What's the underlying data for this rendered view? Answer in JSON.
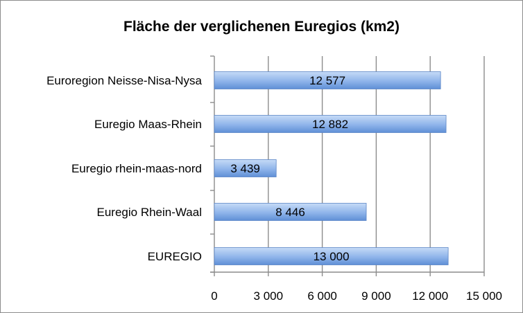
{
  "chart_data": {
    "type": "bar",
    "orientation": "horizontal",
    "title": "Fläche der verglichenen Euregios (km2)",
    "categories": [
      "Euroregion Neisse-Nisa-Nysa",
      "Euregio Maas-Rhein",
      "Euregio rhein-maas-nord",
      "Euregio Rhein-Waal",
      "EUREGIO"
    ],
    "values": [
      12577,
      12882,
      3439,
      8446,
      13000
    ],
    "data_labels": [
      "12 577",
      "12 882",
      "3 439",
      "8 446",
      "13 000"
    ],
    "xlim": [
      0,
      15000
    ],
    "x_ticks": [
      0,
      3000,
      6000,
      9000,
      12000,
      15000
    ],
    "x_tick_labels": [
      "0",
      "3 000",
      "6 000",
      "9 000",
      "12 000",
      "15 000"
    ],
    "xlabel": "",
    "ylabel": "",
    "grid": "vertical",
    "legend": "none",
    "colors": {
      "bar_top": "#c6dbf7",
      "bar_mid": "#8fb4ea",
      "bar_bottom": "#5f8fd6",
      "bar_edge": "#5b85c6",
      "grid": "#8c8c8c"
    }
  }
}
